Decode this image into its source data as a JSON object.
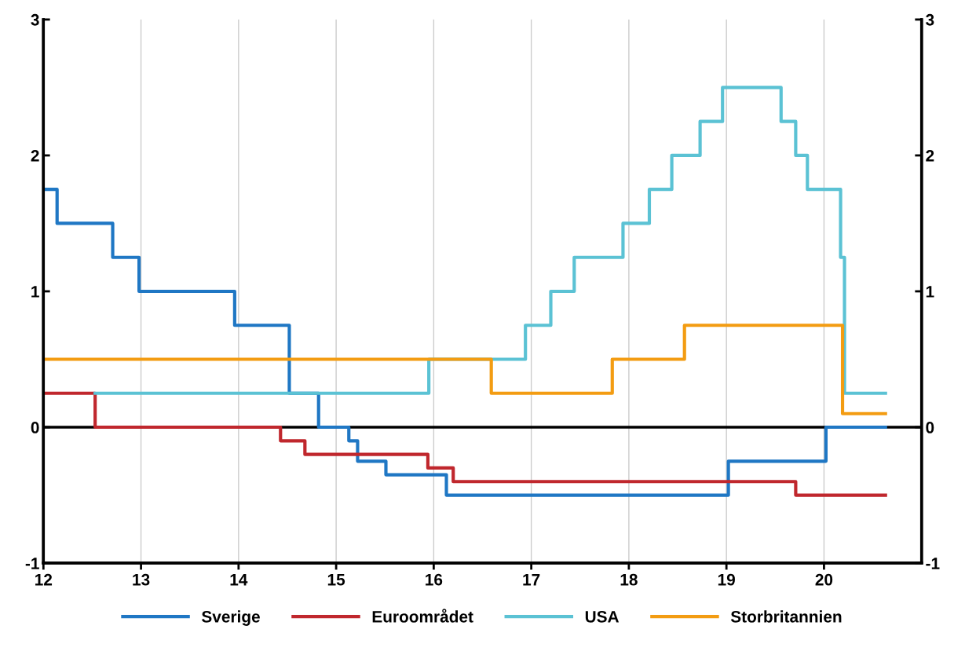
{
  "chart_data": {
    "type": "step",
    "xlim": [
      12,
      21
    ],
    "xticks": [
      12,
      13,
      14,
      15,
      16,
      17,
      18,
      19,
      20
    ],
    "ylim": [
      -1,
      3
    ],
    "yticks": [
      -1,
      0,
      1,
      2,
      3
    ],
    "y2lim": [
      -1,
      3
    ],
    "y2ticks": [
      -1,
      0,
      1,
      2,
      3
    ],
    "grid": "x",
    "legend": "bottom",
    "line_style": "solid",
    "ref_lines": [
      {
        "axis": "y",
        "value": 0,
        "color": "#000000"
      }
    ],
    "series": [
      {
        "name": "Sverige",
        "color": "#1f77c4",
        "x": [
          12,
          12.14,
          12.71,
          12.98,
          13.96,
          14.52,
          14.82,
          15.13,
          15.22,
          15.51,
          16.13,
          19.02,
          20.02,
          20.63
        ],
        "values": [
          1.75,
          1.5,
          1.25,
          1.0,
          0.75,
          0.25,
          0,
          -0.1,
          -0.25,
          -0.35,
          -0.5,
          -0.25,
          0,
          0
        ]
      },
      {
        "name": "Euroområdet",
        "color": "#c0272d",
        "x": [
          12,
          12.53,
          14.43,
          14.68,
          15.94,
          16.2,
          19.71,
          20.63
        ],
        "values": [
          0.25,
          0,
          -0.1,
          -0.2,
          -0.3,
          -0.4,
          -0.5,
          -0.5
        ]
      },
      {
        "name": "USA",
        "color": "#5bc2d4",
        "x": [
          12.53,
          15.95,
          16.94,
          17.2,
          17.44,
          17.94,
          18.21,
          18.44,
          18.73,
          18.96,
          19.56,
          19.71,
          19.83,
          20.17,
          20.21,
          20.63
        ],
        "values": [
          0.25,
          0.5,
          0.75,
          1.0,
          1.25,
          1.5,
          1.75,
          2.0,
          2.25,
          2.5,
          2.25,
          2.0,
          1.75,
          1.25,
          0.25,
          0.25
        ]
      },
      {
        "name": "Storbritannien",
        "color": "#f39c12",
        "x": [
          12,
          16.59,
          17.83,
          18.57,
          20.19,
          20.63
        ],
        "values": [
          0.5,
          0.25,
          0.5,
          0.75,
          0.1,
          0.1
        ]
      }
    ]
  }
}
